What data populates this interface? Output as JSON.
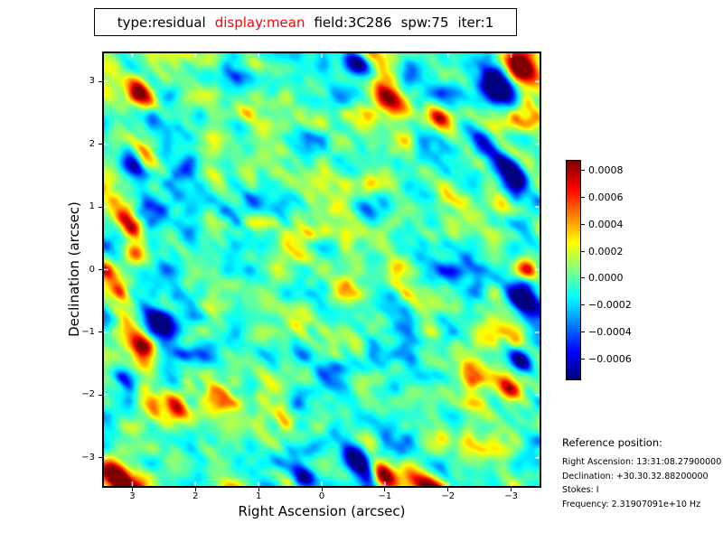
{
  "header": {
    "segments": [
      {
        "text": "type:residual",
        "color": "#000000"
      },
      {
        "text": "display:mean",
        "color": "#ff0000"
      },
      {
        "text": "field:3C286",
        "color": "#000000"
      },
      {
        "text": "spw:75",
        "color": "#000000"
      },
      {
        "text": "iter:1",
        "color": "#000000"
      }
    ],
    "full_title": "type:residual  display:mean  field:3C286  spw:75  iter:1"
  },
  "chart_data": {
    "type": "heatmap",
    "description": "Interferometric residual noise map of field 3C286: smooth mottled noise on a cyan background with yellow-green patches, diagonal (top-left to bottom-right) streaks, and scattered strong red hotspots and dark blue coldspots, rendered with the jet colormap.",
    "xlabel": "Right Ascension (arcsec)",
    "ylabel": "Declination (arcsec)",
    "x_ticks": [
      3,
      2,
      1,
      0,
      -1,
      -2,
      -3
    ],
    "y_ticks": [
      3,
      2,
      1,
      0,
      -1,
      -2,
      -3
    ],
    "xlim": [
      3.45,
      -3.45
    ],
    "ylim": [
      -3.45,
      3.45
    ],
    "colormap": "jet",
    "value_min": -0.000747,
    "value_max": 0.000867,
    "background_level": -4e-05,
    "noise_scale": 0.00036,
    "streak_direction_deg": -45,
    "noise_seed": 7,
    "colorbar_tick_values": [
      0.0008,
      0.0006,
      0.0004,
      0.0002,
      0.0,
      -0.0002,
      -0.0004,
      -0.0006
    ],
    "colorbar_tick_labels": [
      "0.0008",
      "0.0006",
      "0.0004",
      "0.0002",
      "0.0000",
      "−0.0002",
      "−0.0004",
      "−0.0006"
    ],
    "salient_features": [
      {
        "ra": 3.25,
        "dec": -3.3,
        "amp": 0.0013,
        "len": 18,
        "wid": 9
      },
      {
        "ra": 2.9,
        "dec": 2.8,
        "amp": 0.0009,
        "len": 13,
        "wid": 8
      },
      {
        "ra": 3.05,
        "dec": 0.72,
        "amp": 0.0012,
        "len": 14,
        "wid": 7
      },
      {
        "ra": 2.94,
        "dec": 0.26,
        "amp": 0.0007,
        "len": 9,
        "wid": 7
      },
      {
        "ra": 3.42,
        "dec": 0.0,
        "amp": 0.0008,
        "len": 10,
        "wid": 7
      },
      {
        "ra": 3.2,
        "dec": -0.35,
        "amp": 0.0007,
        "len": 9,
        "wid": 6
      },
      {
        "ra": 2.85,
        "dec": -1.2,
        "amp": 0.0009,
        "len": 11,
        "wid": 7
      },
      {
        "ra": 2.3,
        "dec": -2.15,
        "amp": 0.0008,
        "len": 12,
        "wid": 8
      },
      {
        "ra": -1.05,
        "dec": 2.75,
        "amp": 0.001,
        "len": 15,
        "wid": 8
      },
      {
        "ra": -1.85,
        "dec": 2.42,
        "amp": 0.0007,
        "len": 11,
        "wid": 7
      },
      {
        "ra": -3.15,
        "dec": 3.25,
        "amp": 0.0013,
        "len": 15,
        "wid": 9
      },
      {
        "ra": -3.25,
        "dec": 0.0,
        "amp": 0.0008,
        "len": 10,
        "wid": 7
      },
      {
        "ra": -1.0,
        "dec": -3.3,
        "amp": 0.0012,
        "len": 13,
        "wid": 9
      },
      {
        "ra": -2.95,
        "dec": -1.9,
        "amp": 0.0008,
        "len": 11,
        "wid": 7
      },
      {
        "ra": -1.6,
        "dec": -3.45,
        "amp": 0.0009,
        "len": 16,
        "wid": 7
      },
      {
        "ra": -2.8,
        "dec": 2.9,
        "amp": -0.0012,
        "len": 16,
        "wid": 10
      },
      {
        "ra": 2.95,
        "dec": 1.65,
        "amp": -0.0009,
        "len": 13,
        "wid": 8
      },
      {
        "ra": 2.55,
        "dec": -0.85,
        "amp": -0.001,
        "len": 15,
        "wid": 9
      },
      {
        "ra": -3.2,
        "dec": -0.5,
        "amp": -0.001,
        "len": 12,
        "wid": 8
      },
      {
        "ra": -3.15,
        "dec": -1.45,
        "amp": -0.0009,
        "len": 11,
        "wid": 7
      },
      {
        "ra": -0.55,
        "dec": -3.05,
        "amp": -0.001,
        "len": 14,
        "wid": 8
      },
      {
        "ra": 0.3,
        "dec": -3.3,
        "amp": -0.0007,
        "len": 11,
        "wid": 7
      },
      {
        "ra": -2.65,
        "dec": 1.95,
        "amp": -0.0008,
        "len": 20,
        "wid": 7
      },
      {
        "ra": -3.0,
        "dec": 1.55,
        "amp": -0.0009,
        "len": 14,
        "wid": 8
      },
      {
        "ra": -0.55,
        "dec": 3.3,
        "amp": -0.0009,
        "len": 13,
        "wid": 8
      }
    ]
  },
  "reference": {
    "heading": "Reference position:",
    "lines": [
      "Right Ascension: 13:31:08.27900000",
      "Declination: +30.30.32.88200000",
      "Stokes: I",
      "Frequency: 2.31907091e+10 Hz"
    ]
  }
}
